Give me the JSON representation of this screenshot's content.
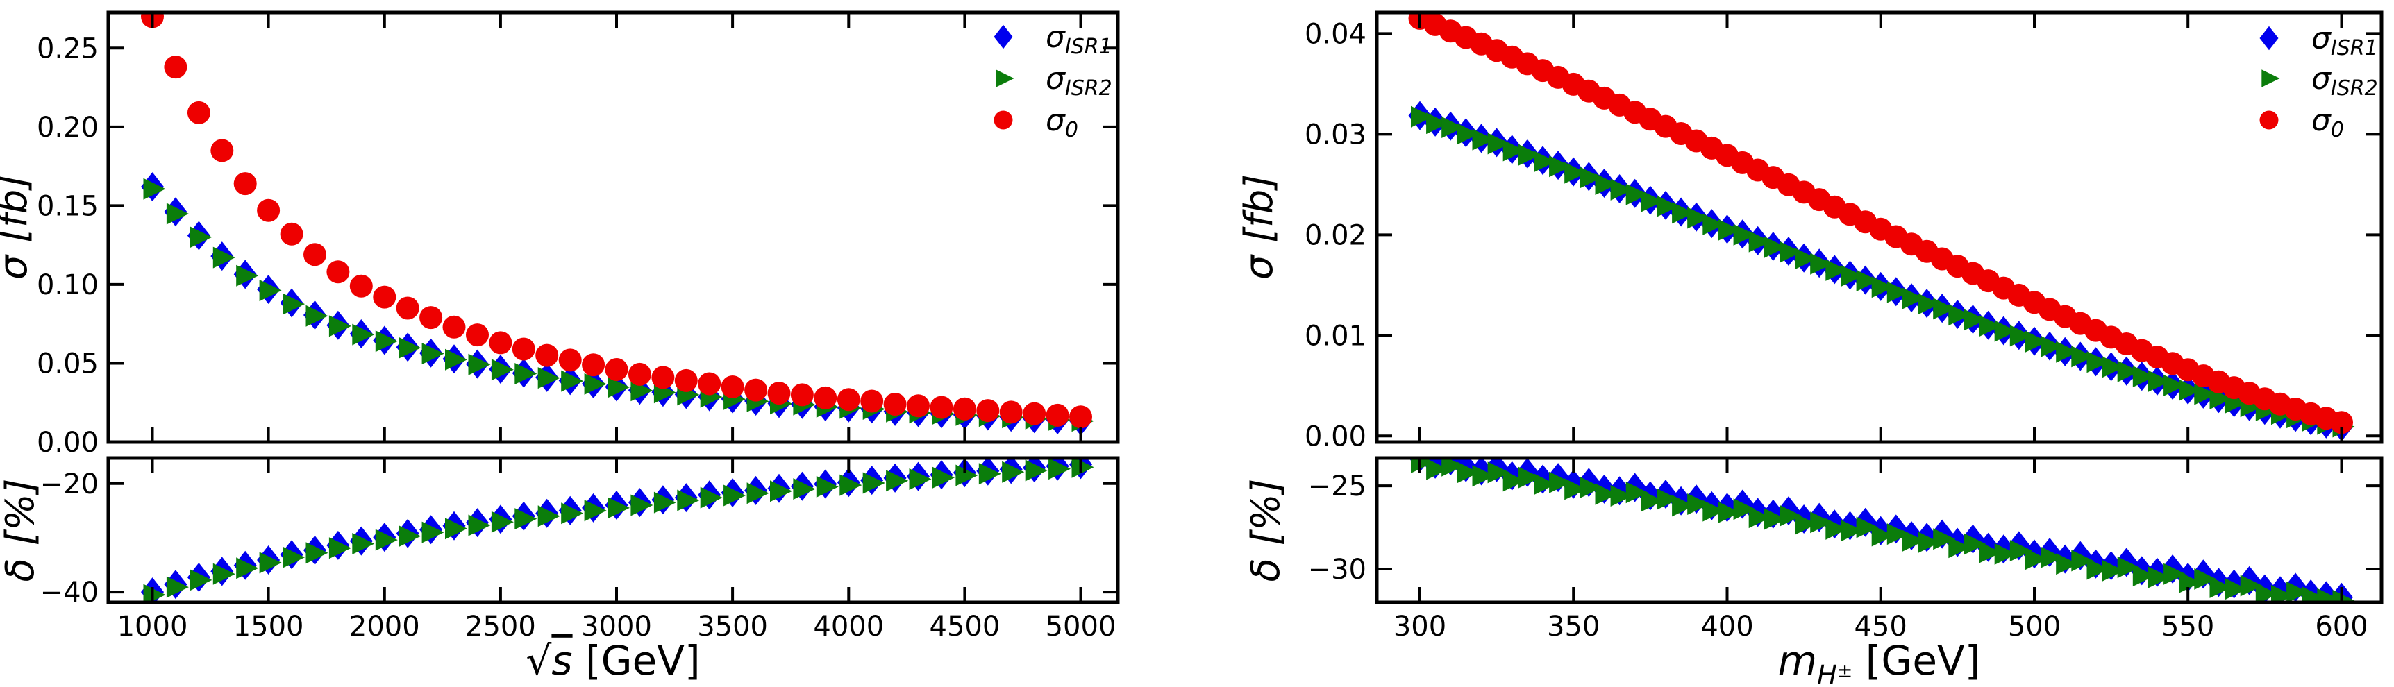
{
  "page": {
    "background": "#ffffff"
  },
  "colors": {
    "sigma_isr1": "#0000ee",
    "sigma_isr2": "#0b7d0b",
    "sigma_0": "#ee0000",
    "axis": "#000000"
  },
  "legend": {
    "position": "upper-right-inside",
    "entries": [
      {
        "label": "σ_ISR1",
        "base": "σ",
        "sub": "ISR1",
        "marker": "diamond-icon",
        "color": "#0000ee"
      },
      {
        "label": "σ_ISR2",
        "base": "σ",
        "sub": "ISR2",
        "marker": "triangle-right-icon",
        "color": "#0b7d0b"
      },
      {
        "label": "σ_0",
        "base": "σ",
        "sub": "0",
        "marker": "circle-icon",
        "color": "#ee0000"
      }
    ]
  },
  "chart_data": [
    {
      "id": "left-figure",
      "type": "scatter",
      "title": "",
      "xlabel": {
        "text": "√s [GeV]",
        "radical": "√",
        "radicand": "s",
        "unit": " [GeV]"
      },
      "ylabel_top": "σ [fb]",
      "ylabel_bottom": "δ [%]",
      "xlim": [
        810,
        5160
      ],
      "xticks": [
        1000,
        1500,
        2000,
        2500,
        3000,
        3500,
        4000,
        4500,
        5000
      ],
      "xtick_labels": [
        "1000",
        "1500",
        "2000",
        "2500",
        "3000",
        "3500",
        "4000",
        "4500",
        "5000"
      ],
      "top_panel": {
        "ylim": [
          0,
          0.2726
        ],
        "yticks": [
          0.0,
          0.05,
          0.1,
          0.15,
          0.2,
          0.25
        ],
        "ytick_labels": [
          "0.00",
          "0.05",
          "0.10",
          "0.15",
          "0.20",
          "0.25"
        ],
        "grid": false
      },
      "bottom_panel": {
        "ylim": [
          -41.9,
          -15.3
        ],
        "yticks": [
          -20,
          -40
        ],
        "ytick_labels": [
          "−20",
          "−40"
        ],
        "grid": false
      },
      "x": [
        1000,
        1100,
        1200,
        1300,
        1400,
        1500,
        1600,
        1700,
        1800,
        1900,
        2000,
        2100,
        2200,
        2300,
        2400,
        2500,
        2600,
        2700,
        2800,
        2900,
        3000,
        3100,
        3200,
        3300,
        3400,
        3500,
        3600,
        3700,
        3800,
        3900,
        4000,
        4100,
        4200,
        4300,
        4400,
        4500,
        4600,
        4700,
        4800,
        4900,
        5000
      ],
      "series": [
        {
          "name": "σ_ISR1",
          "panel": "top",
          "marker": "diamond",
          "color": "#0000ee",
          "values": [
            0.162,
            0.1461,
            0.131,
            0.118,
            0.1064,
            0.0969,
            0.0883,
            0.0806,
            0.0741,
            0.0687,
            0.0645,
            0.0602,
            0.0565,
            0.0527,
            0.0495,
            0.0462,
            0.0437,
            0.041,
            0.039,
            0.037,
            0.035,
            0.0329,
            0.0316,
            0.0302,
            0.0288,
            0.0274,
            0.026,
            0.0245,
            0.0239,
            0.0224,
            0.0217,
            0.021,
            0.0194,
            0.0187,
            0.018,
            0.0172,
            0.0165,
            0.0157,
            0.0149,
            0.0141,
            0.0134
          ]
        },
        {
          "name": "σ_ISR2",
          "panel": "top",
          "marker": "triangle-right",
          "color": "#0b7d0b",
          "values": [
            0.1606,
            0.1449,
            0.13,
            0.1171,
            0.1056,
            0.0962,
            0.0876,
            0.08,
            0.0736,
            0.0682,
            0.064,
            0.0598,
            0.0561,
            0.0523,
            0.0492,
            0.0459,
            0.0434,
            0.0407,
            0.0387,
            0.0368,
            0.0348,
            0.0327,
            0.0314,
            0.03,
            0.0286,
            0.0272,
            0.0258,
            0.0243,
            0.0237,
            0.0223,
            0.0216,
            0.0209,
            0.0193,
            0.0186,
            0.0179,
            0.0171,
            0.0164,
            0.0156,
            0.0148,
            0.014,
            0.0133
          ]
        },
        {
          "name": "σ_0",
          "panel": "top",
          "marker": "circle",
          "color": "#ee0000",
          "values": [
            0.27,
            0.238,
            0.209,
            0.185,
            0.164,
            0.147,
            0.132,
            0.119,
            0.108,
            0.099,
            0.092,
            0.085,
            0.079,
            0.073,
            0.068,
            0.063,
            0.059,
            0.055,
            0.052,
            0.049,
            0.046,
            0.043,
            0.041,
            0.039,
            0.037,
            0.035,
            0.033,
            0.031,
            0.03,
            0.028,
            0.027,
            0.026,
            0.024,
            0.023,
            0.022,
            0.021,
            0.02,
            0.019,
            0.018,
            0.017,
            0.016
          ]
        },
        {
          "name": "δ_ISR1",
          "panel": "bottom",
          "marker": "diamond",
          "color": "#0000ee",
          "values": [
            -40.0,
            -38.6,
            -37.3,
            -36.2,
            -35.1,
            -34.1,
            -33.1,
            -32.3,
            -31.4,
            -30.6,
            -29.9,
            -29.2,
            -28.5,
            -27.8,
            -27.2,
            -26.6,
            -26.0,
            -25.5,
            -25.0,
            -24.5,
            -24.0,
            -23.5,
            -23.0,
            -22.6,
            -22.1,
            -21.7,
            -21.3,
            -20.9,
            -20.5,
            -20.1,
            -19.8,
            -19.4,
            -19.0,
            -18.7,
            -18.4,
            -18.0,
            -17.7,
            -17.4,
            -17.1,
            -16.8,
            -16.5
          ]
        },
        {
          "name": "δ_ISR2",
          "panel": "bottom",
          "marker": "triangle-right",
          "color": "#0b7d0b",
          "values": [
            -40.5,
            -39.1,
            -37.8,
            -36.7,
            -35.6,
            -34.6,
            -33.6,
            -32.8,
            -31.9,
            -31.1,
            -30.4,
            -29.7,
            -29.0,
            -28.3,
            -27.7,
            -27.1,
            -26.5,
            -26.0,
            -25.5,
            -25.0,
            -24.5,
            -24.0,
            -23.5,
            -23.1,
            -22.6,
            -22.2,
            -21.8,
            -21.4,
            -21.0,
            -20.6,
            -20.3,
            -19.9,
            -19.5,
            -19.2,
            -18.9,
            -18.5,
            -18.2,
            -17.9,
            -17.6,
            -17.3,
            -17.0
          ]
        }
      ]
    },
    {
      "id": "right-figure",
      "type": "scatter",
      "title": "",
      "xlabel": {
        "text": "m_H± [GeV]",
        "base": "m",
        "sub": "H",
        "subsup": "±",
        "unit": " [GeV]"
      },
      "ylabel_top": "σ [fb]",
      "ylabel_bottom": "δ [%]",
      "xlim": [
        286,
        613
      ],
      "xticks": [
        300,
        350,
        400,
        450,
        500,
        550,
        600
      ],
      "xtick_labels": [
        "300",
        "350",
        "400",
        "450",
        "500",
        "550",
        "600"
      ],
      "top_panel": {
        "ylim": [
          -0.0006,
          0.0421
        ],
        "yticks": [
          0.0,
          0.01,
          0.02,
          0.03,
          0.04
        ],
        "ytick_labels": [
          "0.00",
          "0.01",
          "0.02",
          "0.03",
          "0.04"
        ],
        "grid": false
      },
      "bottom_panel": {
        "ylim": [
          -32.0,
          -23.33
        ],
        "yticks": [
          -25,
          -30
        ],
        "ytick_labels": [
          "−25",
          "−30"
        ],
        "grid": false
      },
      "x": [
        300,
        305,
        310,
        315,
        320,
        325,
        330,
        335,
        340,
        345,
        350,
        355,
        360,
        365,
        370,
        375,
        380,
        385,
        390,
        395,
        400,
        405,
        410,
        415,
        420,
        425,
        430,
        435,
        440,
        445,
        450,
        455,
        460,
        465,
        470,
        475,
        480,
        485,
        490,
        495,
        500,
        505,
        510,
        515,
        520,
        525,
        530,
        535,
        540,
        545,
        550,
        555,
        560,
        565,
        570,
        575,
        580,
        585,
        590,
        595,
        600
      ],
      "series": [
        {
          "name": "σ_ISR1",
          "panel": "top",
          "marker": "diamond",
          "color": "#0000ee",
          "values": [
            0.03185,
            0.03121,
            0.0308,
            0.03015,
            0.02959,
            0.02917,
            0.02848,
            0.02805,
            0.02739,
            0.02692,
            0.02626,
            0.02579,
            0.02513,
            0.02458,
            0.02411,
            0.02343,
            0.02293,
            0.02227,
            0.02177,
            0.02112,
            0.02056,
            0.02008,
            0.01941,
            0.01885,
            0.01836,
            0.0177,
            0.01718,
            0.01655,
            0.01599,
            0.0155,
            0.01486,
            0.01435,
            0.01374,
            0.01319,
            0.0127,
            0.01209,
            0.0116,
            0.011,
            0.01047,
            0.01,
            0.00942,
            0.00893,
            0.00839,
            0.00792,
            0.00738,
            0.00689,
            0.00645,
            0.00594,
            0.00548,
            0.00505,
            0.00458,
            0.00417,
            0.00373,
            0.00332,
            0.00294,
            0.00255,
            0.00218,
            0.00185,
            0.00151,
            0.0012,
            0.00092
          ]
        },
        {
          "name": "σ_ISR2",
          "panel": "top",
          "marker": "triangle-right",
          "color": "#0b7d0b",
          "values": [
            0.03173,
            0.03109,
            0.03068,
            0.03003,
            0.02947,
            0.02906,
            0.02837,
            0.02794,
            0.02728,
            0.02681,
            0.02616,
            0.02569,
            0.02503,
            0.02448,
            0.02401,
            0.02334,
            0.02284,
            0.02218,
            0.02168,
            0.02103,
            0.02048,
            0.02,
            0.01933,
            0.01877,
            0.01829,
            0.01763,
            0.01711,
            0.01648,
            0.01592,
            0.01544,
            0.0148,
            0.01429,
            0.01368,
            0.01313,
            0.01265,
            0.01204,
            0.01155,
            0.01095,
            0.01043,
            0.00996,
            0.00938,
            0.00889,
            0.00835,
            0.00789,
            0.00735,
            0.00686,
            0.00642,
            0.00591,
            0.00546,
            0.00503,
            0.00456,
            0.00415,
            0.00371,
            0.00331,
            0.00293,
            0.00254,
            0.00217,
            0.00184,
            0.0015,
            0.00119,
            0.00092
          ]
        },
        {
          "name": "σ_0",
          "panel": "top",
          "marker": "circle",
          "color": "#ee0000",
          "values": [
            0.04152,
            0.0409,
            0.04026,
            0.03962,
            0.03898,
            0.03833,
            0.03767,
            0.037,
            0.03633,
            0.03566,
            0.03497,
            0.03429,
            0.03359,
            0.0329,
            0.03219,
            0.03149,
            0.03078,
            0.03006,
            0.02934,
            0.02862,
            0.0279,
            0.02717,
            0.02644,
            0.02571,
            0.02498,
            0.02424,
            0.0235,
            0.02277,
            0.02203,
            0.02129,
            0.02056,
            0.01982,
            0.01908,
            0.01835,
            0.01761,
            0.01688,
            0.01616,
            0.01543,
            0.01471,
            0.014,
            0.01328,
            0.01258,
            0.01188,
            0.01119,
            0.0105,
            0.00982,
            0.00916,
            0.0085,
            0.00785,
            0.00721,
            0.00659,
            0.00598,
            0.00539,
            0.00481,
            0.00424,
            0.0037,
            0.00318,
            0.00268,
            0.00221,
            0.00176,
            0.00135
          ]
        },
        {
          "name": "δ_ISR1",
          "panel": "bottom",
          "marker": "diamond",
          "color": "#0000ee",
          "values": [
            -23.3,
            -23.7,
            -23.5,
            -23.9,
            -24.1,
            -23.9,
            -24.4,
            -24.2,
            -24.6,
            -24.5,
            -24.9,
            -24.8,
            -25.2,
            -25.3,
            -25.1,
            -25.6,
            -25.5,
            -25.9,
            -25.8,
            -26.2,
            -26.3,
            -26.1,
            -26.6,
            -26.7,
            -26.5,
            -27.0,
            -26.9,
            -27.3,
            -27.4,
            -27.2,
            -27.7,
            -27.6,
            -28.0,
            -28.1,
            -27.9,
            -28.4,
            -28.2,
            -28.7,
            -28.8,
            -28.6,
            -29.1,
            -29.0,
            -29.4,
            -29.2,
            -29.7,
            -29.8,
            -29.6,
            -30.1,
            -30.2,
            -30.0,
            -30.5,
            -30.3,
            -30.8,
            -30.9,
            -30.7,
            -31.2,
            -31.3,
            -31.1,
            -31.5,
            -31.6,
            -31.7
          ]
        },
        {
          "name": "δ_ISR2",
          "panel": "bottom",
          "marker": "triangle-right",
          "color": "#0b7d0b",
          "values": [
            -23.6,
            -24.0,
            -23.8,
            -24.2,
            -24.4,
            -24.2,
            -24.7,
            -24.5,
            -24.9,
            -24.8,
            -25.2,
            -25.1,
            -25.5,
            -25.6,
            -25.4,
            -25.9,
            -25.8,
            -26.2,
            -26.1,
            -26.5,
            -26.6,
            -26.4,
            -26.9,
            -27.0,
            -26.8,
            -27.3,
            -27.2,
            -27.6,
            -27.7,
            -27.5,
            -28.0,
            -27.9,
            -28.3,
            -28.4,
            -28.2,
            -28.7,
            -28.5,
            -29.0,
            -29.1,
            -28.9,
            -29.4,
            -29.3,
            -29.7,
            -29.5,
            -30.0,
            -30.1,
            -29.9,
            -30.4,
            -30.5,
            -30.3,
            -30.8,
            -30.6,
            -31.1,
            -31.2,
            -31.0,
            -31.5,
            -31.6,
            -31.4,
            -31.7,
            -31.8,
            -31.9
          ]
        }
      ]
    }
  ]
}
